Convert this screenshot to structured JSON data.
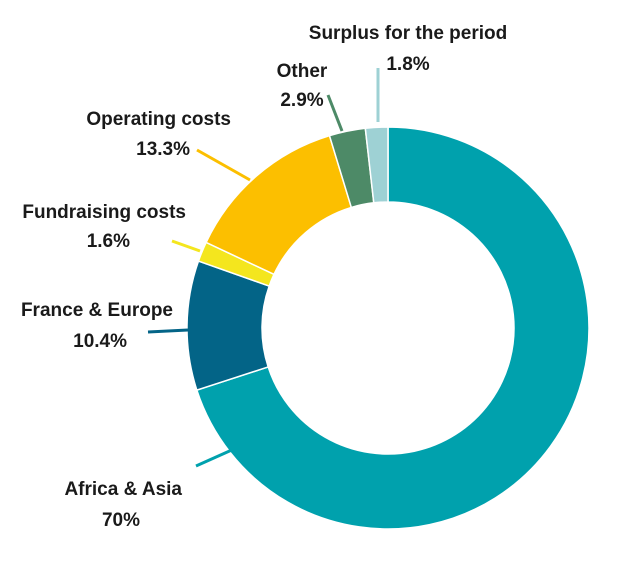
{
  "chart_data": {
    "type": "pie",
    "donut": true,
    "legend": "none",
    "slices": [
      {
        "name": "Africa & Asia",
        "label": "70%",
        "value": 70.0,
        "color": "#00A1AD"
      },
      {
        "name": "France & Europe",
        "label": "10.4%",
        "value": 10.4,
        "color": "#036487"
      },
      {
        "name": "Fundraising costs",
        "label": "1.6%",
        "value": 1.6,
        "color": "#F4E61E"
      },
      {
        "name": "Operating costs",
        "label": "13.3%",
        "value": 13.3,
        "color": "#FCBF00"
      },
      {
        "name": "Other",
        "label": "2.9%",
        "value": 2.9,
        "color": "#4D8A67"
      },
      {
        "name": "Surplus for the period",
        "label": "1.8%",
        "value": 1.8,
        "color": "#9ED1D4"
      }
    ]
  }
}
